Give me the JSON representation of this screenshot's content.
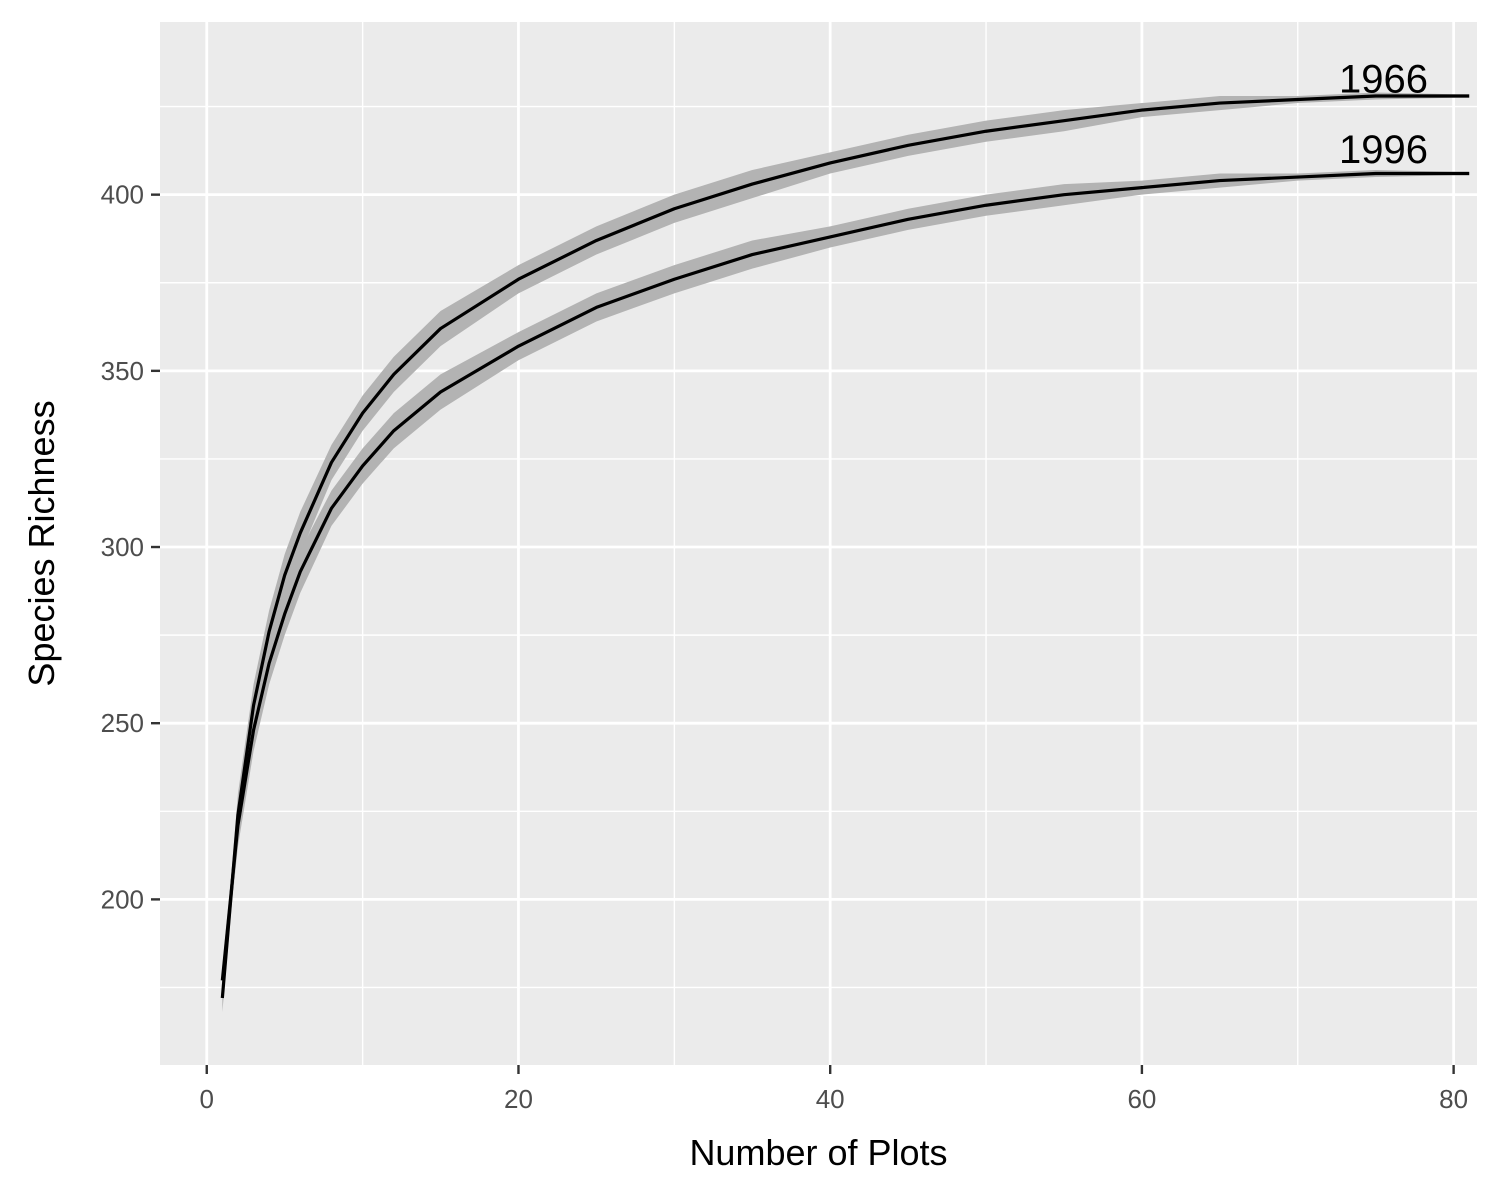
{
  "chart_data": {
    "type": "line",
    "title": "",
    "xlabel": "Number of Plots",
    "ylabel": "Species Richness",
    "xlim": [
      -3,
      81.5
    ],
    "ylim": [
      153,
      449
    ],
    "x_ticks": [
      0,
      20,
      40,
      60,
      80
    ],
    "y_ticks": [
      200,
      250,
      300,
      350,
      400
    ],
    "grid": true,
    "legend": "none",
    "colors": {
      "panel": "#ebebeb",
      "grid": "#ffffff",
      "line": "#000000",
      "band": "#b3b3b3",
      "axis_text": "#4d4d4d"
    },
    "series": [
      {
        "name": "1966",
        "label_x": 75.5,
        "label_y": 429,
        "x": [
          1,
          2,
          3,
          4,
          5,
          6,
          8,
          10,
          12,
          15,
          20,
          25,
          30,
          35,
          40,
          45,
          50,
          55,
          60,
          65,
          70,
          75,
          80,
          81
        ],
        "y": [
          172,
          224,
          255,
          276,
          292,
          304,
          324,
          338,
          349,
          362,
          376,
          387,
          396,
          403,
          409,
          414,
          418,
          421,
          424,
          426,
          427,
          428,
          428,
          428
        ],
        "band": [
          4,
          6,
          6,
          6,
          6,
          6,
          5,
          5,
          5,
          5,
          4,
          4,
          4,
          4,
          3,
          3,
          3,
          3,
          2,
          2,
          1,
          1,
          0.5,
          0.5
        ]
      },
      {
        "name": "1996",
        "label_x": 75.5,
        "label_y": 409,
        "x": [
          1,
          2,
          3,
          4,
          5,
          6,
          8,
          10,
          12,
          15,
          20,
          25,
          30,
          35,
          40,
          45,
          50,
          55,
          60,
          65,
          70,
          75,
          80,
          81
        ],
        "y": [
          177,
          221,
          248,
          267,
          281,
          293,
          311,
          323,
          333,
          344,
          357,
          368,
          376,
          383,
          388,
          393,
          397,
          400,
          402,
          404,
          405,
          406,
          406,
          406
        ],
        "band": [
          4,
          6,
          6,
          6,
          6,
          6,
          5,
          5,
          5,
          5,
          4,
          4,
          4,
          4,
          3,
          3,
          3,
          3,
          2,
          2,
          1,
          1,
          0.5,
          0.5
        ]
      }
    ]
  }
}
